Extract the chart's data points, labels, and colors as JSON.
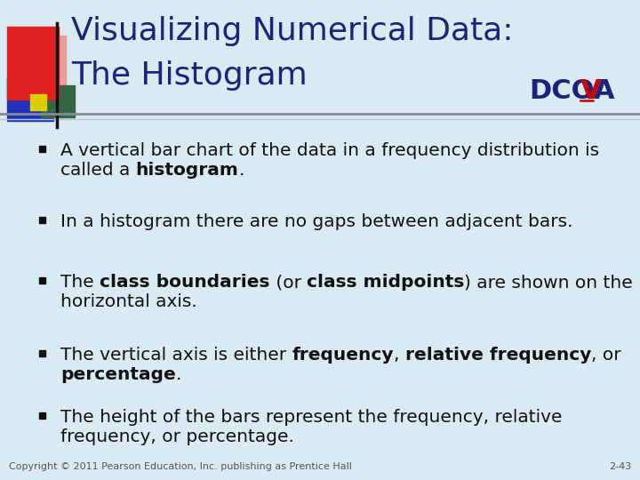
{
  "title_line1": "Visualizing Numerical Data:",
  "title_line2": "The Histogram",
  "title_color": "#1a237e",
  "bg_color": "#daeaf2",
  "dcova_color": "#1a237e",
  "dcova_v_color": "#cc0000",
  "text_color": "#111111",
  "font_size_title": 26,
  "font_size_bullet": 14.5,
  "font_size_dcova": 22,
  "font_size_footer": 8,
  "bullets": [
    [
      {
        "text": "A vertical bar chart of the data in a frequency distribution is\ncalled a ",
        "bold": false
      },
      {
        "text": "histogram",
        "bold": true
      },
      {
        "text": ".",
        "bold": false
      }
    ],
    [
      {
        "text": "In a histogram there are no gaps between adjacent bars.",
        "bold": false
      }
    ],
    [
      {
        "text": "The ",
        "bold": false
      },
      {
        "text": "class boundaries",
        "bold": true
      },
      {
        "text": " (or ",
        "bold": false
      },
      {
        "text": "class midpoints",
        "bold": true
      },
      {
        "text": ") are shown on the\nhorizontal axis.",
        "bold": false
      }
    ],
    [
      {
        "text": "The vertical axis is either ",
        "bold": false
      },
      {
        "text": "frequency",
        "bold": true
      },
      {
        "text": ", ",
        "bold": false
      },
      {
        "text": "relative frequency",
        "bold": true
      },
      {
        "text": ", or\n",
        "bold": false
      },
      {
        "text": "percentage",
        "bold": true
      },
      {
        "text": ".",
        "bold": false
      }
    ],
    [
      {
        "text": "The height of the bars represent the frequency, relative\nfrequency, or percentage.",
        "bold": false
      }
    ]
  ],
  "footer_left": "Copyright © 2011 Pearson Education, Inc. publishing as Prentice Hall",
  "footer_right": "2-43",
  "footer_color": "#555555",
  "separator_color": "#888899",
  "deco": {
    "red": "#dd2020",
    "pink": "#f09090",
    "blue": "#2233bb",
    "green": "#336644",
    "yellow": "#ddcc00",
    "black": "#111111"
  }
}
